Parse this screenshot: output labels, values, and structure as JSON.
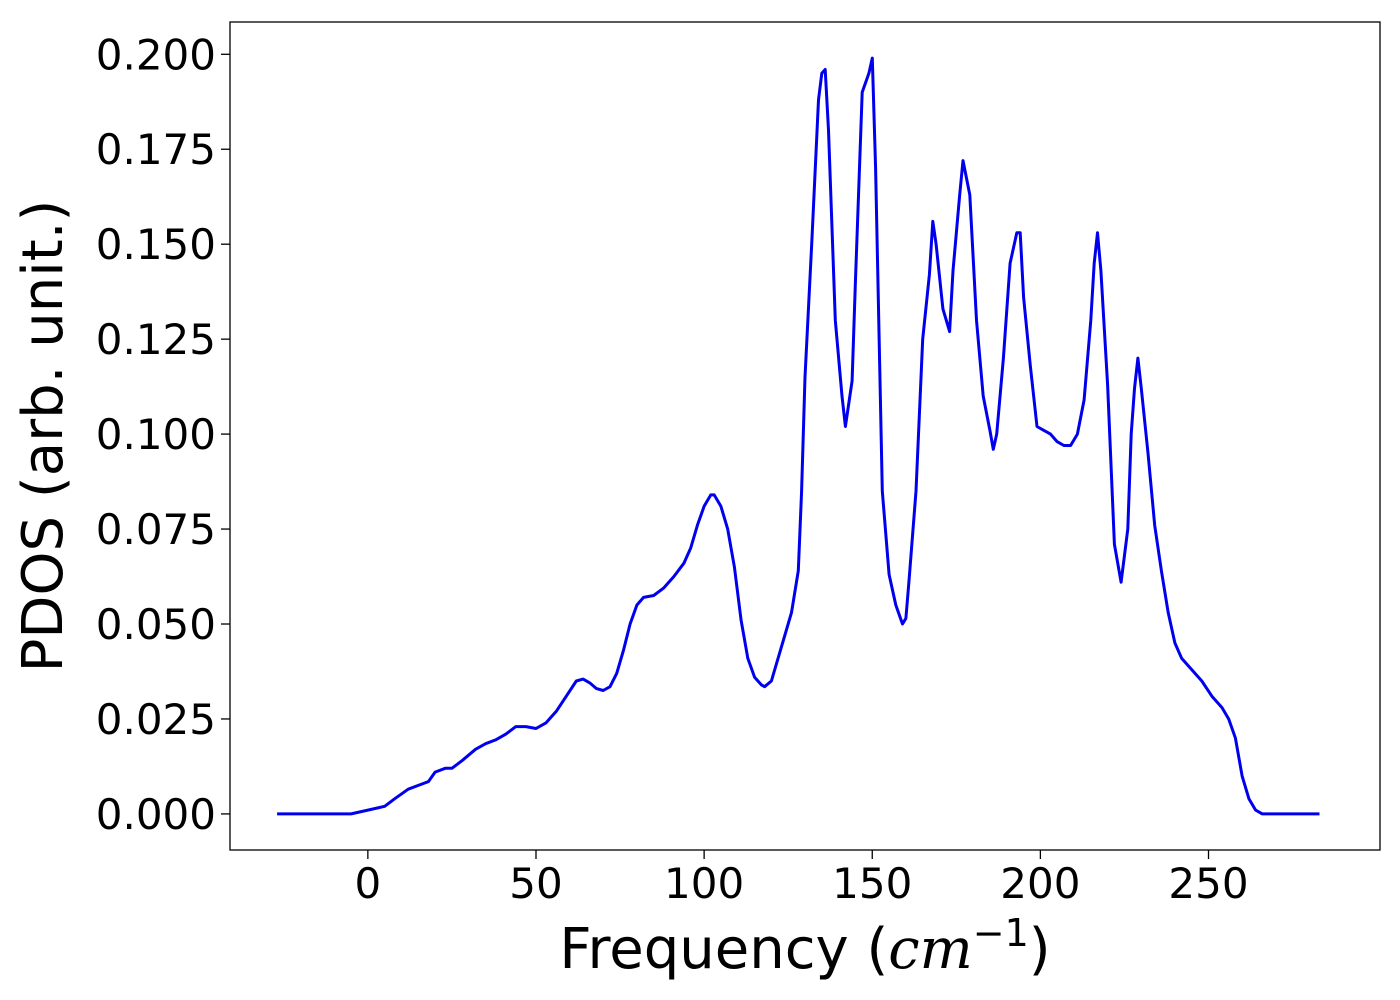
{
  "chart_data": {
    "type": "line",
    "title": "",
    "xlabel_prefix": "Frequency (",
    "xlabel_unit": "cm",
    "xlabel_exp": "−1",
    "xlabel_suffix": ")",
    "ylabel": "PDOS (arb. unit.)",
    "xlim": [
      -41,
      301
    ],
    "ylim": [
      -0.0095,
      0.2085
    ],
    "xticks": [
      0,
      50,
      100,
      150,
      200,
      250
    ],
    "xtick_labels": [
      "0",
      "50",
      "100",
      "150",
      "200",
      "250"
    ],
    "yticks": [
      0.0,
      0.025,
      0.05,
      0.075,
      0.1,
      0.125,
      0.15,
      0.175,
      0.2
    ],
    "ytick_labels": [
      "0.000",
      "0.025",
      "0.050",
      "0.075",
      "0.100",
      "0.125",
      "0.150",
      "0.175",
      "0.200"
    ],
    "grid": false,
    "series": [
      {
        "color": "#0000ee",
        "x": [
          -27,
          -5,
          0,
          5,
          8,
          12,
          15,
          18,
          20,
          23,
          25,
          28,
          32,
          35,
          38,
          41,
          44,
          47,
          50,
          53,
          56,
          59,
          62,
          64,
          66,
          68,
          70,
          72,
          74,
          76,
          78,
          80,
          82,
          85,
          88,
          91,
          94,
          96,
          98,
          100,
          102,
          103,
          105,
          107,
          109,
          111,
          113,
          115,
          117,
          118,
          120,
          122,
          124,
          126,
          128,
          129,
          130,
          132,
          134,
          135,
          136,
          137,
          139,
          141,
          142,
          144,
          145,
          147,
          149,
          150,
          151,
          153,
          155,
          157,
          159,
          160,
          161,
          163,
          165,
          167,
          168,
          169,
          171,
          173,
          174,
          176,
          177,
          179,
          181,
          183,
          185,
          186,
          187,
          189,
          191,
          193,
          194,
          195,
          197,
          199,
          201,
          203,
          205,
          207,
          209,
          211,
          213,
          215,
          216,
          217,
          218,
          220,
          222,
          224,
          226,
          227,
          228,
          229,
          230,
          232,
          234,
          236,
          238,
          240,
          242,
          245,
          248,
          251,
          254,
          256,
          258,
          260,
          262,
          264,
          266,
          270,
          283
        ],
        "y": [
          0.0,
          0.0,
          0.001,
          0.002,
          0.004,
          0.0065,
          0.0075,
          0.0085,
          0.011,
          0.012,
          0.012,
          0.014,
          0.017,
          0.0185,
          0.0195,
          0.021,
          0.023,
          0.023,
          0.0225,
          0.024,
          0.027,
          0.031,
          0.035,
          0.0355,
          0.0345,
          0.033,
          0.0325,
          0.0335,
          0.037,
          0.043,
          0.05,
          0.055,
          0.057,
          0.0575,
          0.0595,
          0.0625,
          0.066,
          0.07,
          0.076,
          0.081,
          0.084,
          0.084,
          0.081,
          0.075,
          0.065,
          0.051,
          0.041,
          0.036,
          0.034,
          0.0335,
          0.035,
          0.041,
          0.047,
          0.053,
          0.064,
          0.085,
          0.115,
          0.15,
          0.188,
          0.195,
          0.196,
          0.18,
          0.13,
          0.11,
          0.102,
          0.114,
          0.14,
          0.19,
          0.195,
          0.199,
          0.17,
          0.085,
          0.063,
          0.055,
          0.05,
          0.0515,
          0.062,
          0.085,
          0.125,
          0.142,
          0.156,
          0.15,
          0.133,
          0.127,
          0.143,
          0.163,
          0.172,
          0.163,
          0.13,
          0.11,
          0.101,
          0.096,
          0.1,
          0.12,
          0.145,
          0.153,
          0.153,
          0.136,
          0.118,
          0.102,
          0.101,
          0.1,
          0.098,
          0.097,
          0.097,
          0.1,
          0.109,
          0.13,
          0.145,
          0.153,
          0.143,
          0.113,
          0.071,
          0.061,
          0.075,
          0.1,
          0.112,
          0.12,
          0.112,
          0.095,
          0.076,
          0.064,
          0.053,
          0.045,
          0.041,
          0.038,
          0.035,
          0.031,
          0.028,
          0.025,
          0.02,
          0.01,
          0.004,
          0.001,
          0.0,
          0.0,
          0.0
        ]
      }
    ]
  }
}
